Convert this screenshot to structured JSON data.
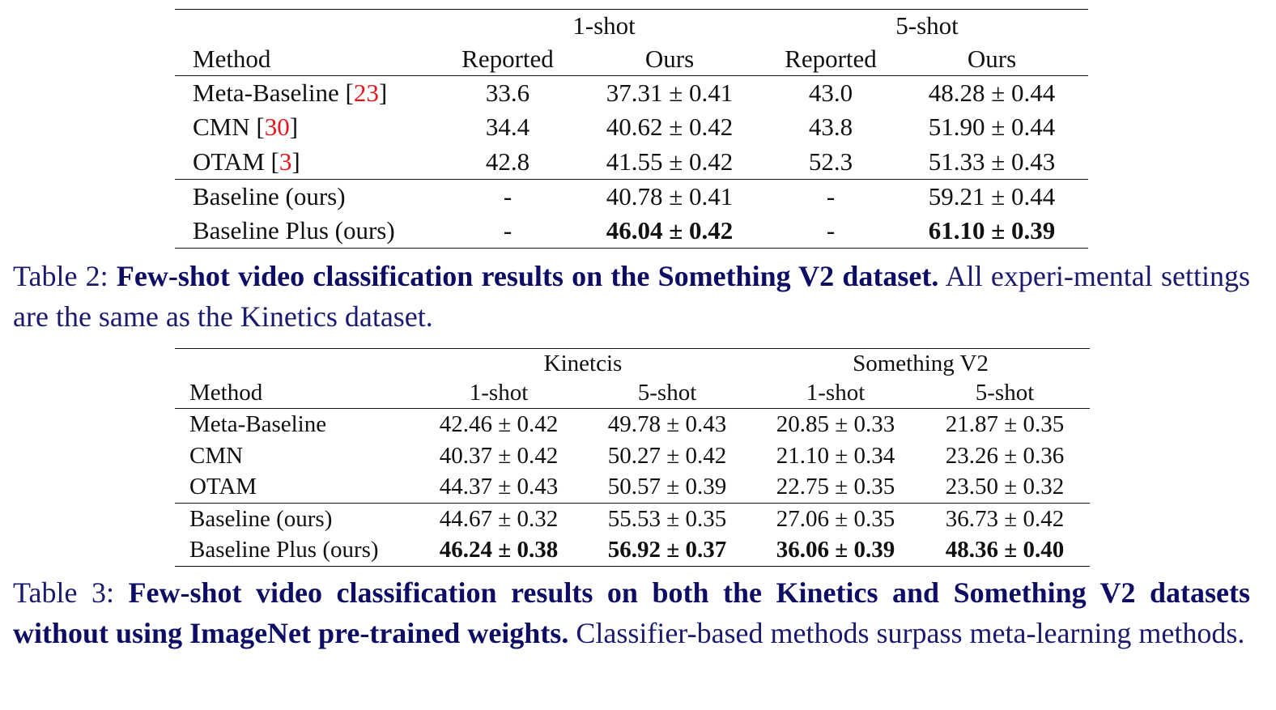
{
  "table2": {
    "groups": [
      "1-shot",
      "5-shot"
    ],
    "headers": [
      "Method",
      "Reported",
      "Ours",
      "Reported",
      "Ours"
    ],
    "rows": [
      {
        "method": "Meta-Baseline ",
        "ref": "23",
        "cells": [
          "33.6",
          "37.31 ± 0.41",
          "43.0",
          "48.28 ± 0.44"
        ]
      },
      {
        "method": "CMN ",
        "ref": "30",
        "cells": [
          "34.4",
          "40.62 ± 0.42",
          "43.8",
          "51.90 ± 0.44"
        ]
      },
      {
        "method": "OTAM ",
        "ref": "3",
        "cells": [
          "42.8",
          "41.55 ± 0.42",
          "52.3",
          "51.33 ± 0.43"
        ]
      },
      {
        "method": "Baseline (ours)",
        "cells": [
          "-",
          "40.78 ± 0.41",
          "-",
          "59.21 ± 0.44"
        ]
      },
      {
        "method": "Baseline Plus (ours)",
        "cells": [
          "-",
          "46.04 ± 0.42",
          "-",
          "61.10 ± 0.39"
        ]
      }
    ],
    "caption": {
      "label": "Table 2: ",
      "title": "Few-shot video classification results on the Something V2 dataset.",
      "text": " All experi-mental settings are the same as the Kinetics dataset."
    }
  },
  "table3": {
    "groups": [
      "Kinetcis",
      "Something V2"
    ],
    "headers": [
      "Method",
      "1-shot",
      "5-shot",
      "1-shot",
      "5-shot"
    ],
    "rows": [
      {
        "method": "Meta-Baseline",
        "cells": [
          "42.46 ± 0.42",
          "49.78 ± 0.43",
          "20.85 ± 0.33",
          "21.87 ± 0.35"
        ]
      },
      {
        "method": "CMN",
        "cells": [
          "40.37 ± 0.42",
          "50.27 ± 0.42",
          "21.10 ± 0.34",
          "23.26 ± 0.36"
        ]
      },
      {
        "method": "OTAM",
        "cells": [
          "44.37 ± 0.43",
          "50.57 ± 0.39",
          "22.75 ± 0.35",
          "23.50 ± 0.32"
        ]
      },
      {
        "method": "Baseline (ours)",
        "cells": [
          "44.67 ± 0.32",
          "55.53 ± 0.35",
          "27.06 ± 0.35",
          "36.73 ± 0.42"
        ]
      },
      {
        "method": "Baseline Plus (ours)",
        "cells": [
          "46.24 ± 0.38",
          "56.92 ± 0.37",
          "36.06 ± 0.39",
          "48.36 ± 0.40"
        ]
      }
    ],
    "caption": {
      "label": "Table 3: ",
      "title": "Few-shot video classification results on both the Kinetics and Something V2 datasets without using ImageNet pre-trained weights.",
      "text": " Classifier-based methods surpass meta-learning methods."
    }
  }
}
